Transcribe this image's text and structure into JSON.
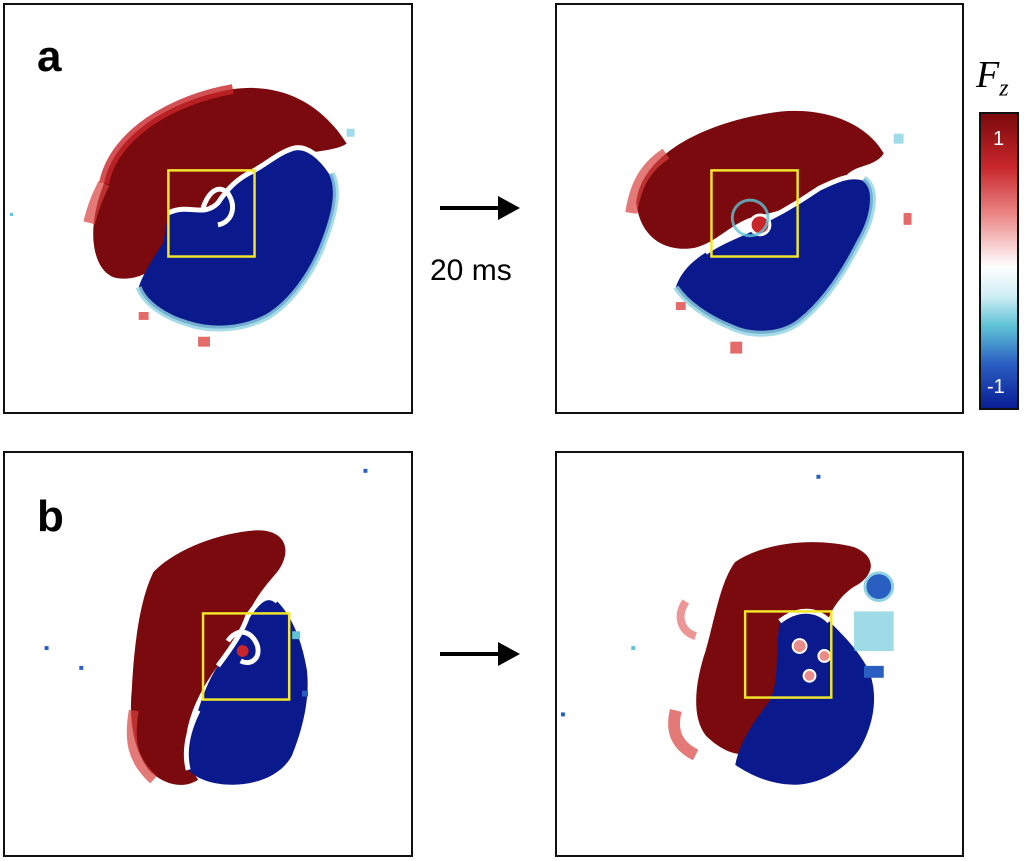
{
  "panels": {
    "a_label": "a",
    "b_label": "b"
  },
  "time_label": "20 ms",
  "colorbar": {
    "title_main": "F",
    "title_sub": "z",
    "tick_max": "1",
    "tick_min": "-1",
    "colors": [
      "#7a0a0d",
      "#c8262b",
      "#ffffff",
      "#5fc3d6",
      "#0a1e96"
    ]
  },
  "colors": {
    "red_domain": "#7a0a0d",
    "blue_domain": "#0a1a8c",
    "highlight_box": "#f2e62a"
  }
}
